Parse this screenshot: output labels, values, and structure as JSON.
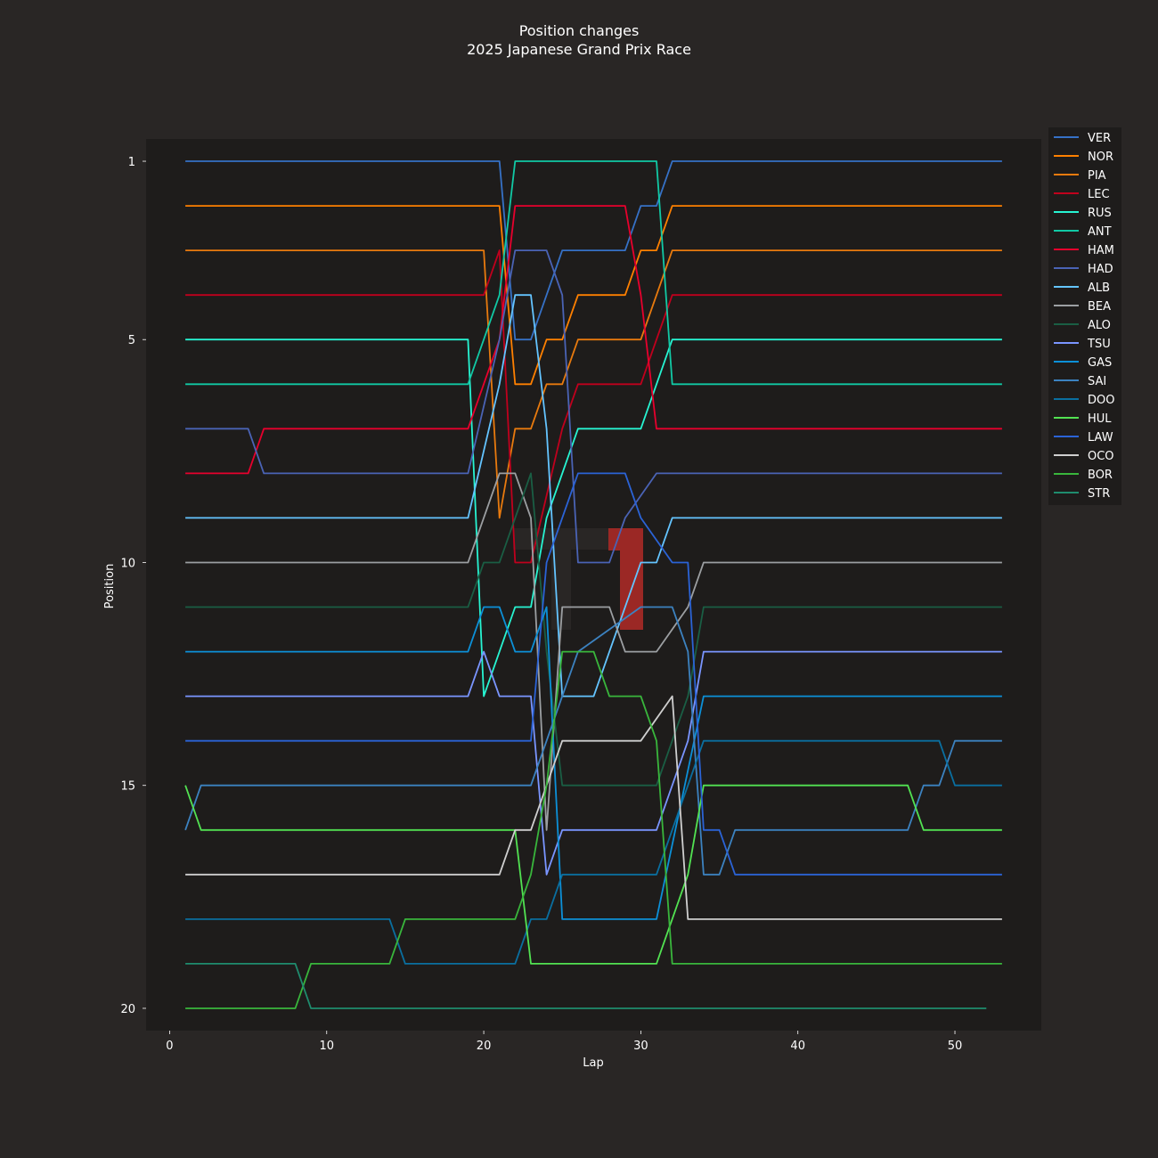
{
  "chart_data": {
    "type": "line",
    "title": "Position changes",
    "subtitle": "2025 Japanese Grand Prix Race",
    "xlabel": "Lap",
    "ylabel": "Position",
    "xlim": [
      -1.5,
      55.5
    ],
    "ylim": [
      20.5,
      0.5
    ],
    "y_inverted": true,
    "xticks": [
      0,
      10,
      20,
      30,
      40,
      50
    ],
    "yticks": [
      1,
      5,
      10,
      15,
      20
    ],
    "grid": false,
    "legend_position": "outside-right-top",
    "background": "#292625",
    "plot_background": "#1e1c1b",
    "series": [
      {
        "name": "VER",
        "color": "#3671C6",
        "points": [
          [
            1,
            1
          ],
          [
            21,
            1
          ],
          [
            22,
            5
          ],
          [
            23,
            5
          ],
          [
            24,
            4
          ],
          [
            25,
            3
          ],
          [
            29,
            3
          ],
          [
            30,
            2
          ],
          [
            31,
            2
          ],
          [
            32,
            1
          ],
          [
            53,
            1
          ]
        ]
      },
      {
        "name": "NOR",
        "color": "#FF8000",
        "points": [
          [
            1,
            2
          ],
          [
            21,
            2
          ],
          [
            22,
            6
          ],
          [
            23,
            6
          ],
          [
            24,
            5
          ],
          [
            25,
            5
          ],
          [
            26,
            4
          ],
          [
            29,
            4
          ],
          [
            30,
            3
          ],
          [
            31,
            3
          ],
          [
            32,
            2
          ],
          [
            53,
            2
          ]
        ]
      },
      {
        "name": "PIA",
        "color": "#E87A0E",
        "points": [
          [
            1,
            3
          ],
          [
            20,
            3
          ],
          [
            21,
            9
          ],
          [
            22,
            7
          ],
          [
            23,
            7
          ],
          [
            24,
            6
          ],
          [
            25,
            6
          ],
          [
            26,
            5
          ],
          [
            30,
            5
          ],
          [
            32,
            3
          ],
          [
            53,
            3
          ]
        ]
      },
      {
        "name": "LEC",
        "color": "#C0001D",
        "points": [
          [
            1,
            4
          ],
          [
            20,
            4
          ],
          [
            21,
            3
          ],
          [
            22,
            10
          ],
          [
            23,
            10
          ],
          [
            25,
            7
          ],
          [
            26,
            6
          ],
          [
            30,
            6
          ],
          [
            31,
            5
          ],
          [
            32,
            4
          ],
          [
            53,
            4
          ]
        ]
      },
      {
        "name": "RUS",
        "color": "#27F4D2",
        "points": [
          [
            1,
            5
          ],
          [
            19,
            5
          ],
          [
            20,
            13
          ],
          [
            22,
            11
          ],
          [
            23,
            11
          ],
          [
            24,
            9
          ],
          [
            26,
            7
          ],
          [
            30,
            7
          ],
          [
            32,
            5
          ],
          [
            53,
            5
          ]
        ]
      },
      {
        "name": "ANT",
        "color": "#11C9A5",
        "points": [
          [
            1,
            6
          ],
          [
            19,
            6
          ],
          [
            21,
            4
          ],
          [
            22,
            1
          ],
          [
            31,
            1
          ],
          [
            32,
            6
          ],
          [
            53,
            6
          ]
        ]
      },
      {
        "name": "HAM",
        "color": "#E8002D",
        "points": [
          [
            1,
            8
          ],
          [
            5,
            8
          ],
          [
            6,
            7
          ],
          [
            19,
            7
          ],
          [
            21,
            5
          ],
          [
            22,
            2
          ],
          [
            29,
            2
          ],
          [
            30,
            4
          ],
          [
            31,
            7
          ],
          [
            53,
            7
          ]
        ]
      },
      {
        "name": "HAD",
        "color": "#4A63B5",
        "points": [
          [
            1,
            7
          ],
          [
            5,
            7
          ],
          [
            6,
            8
          ],
          [
            19,
            8
          ],
          [
            21,
            5
          ],
          [
            22,
            3
          ],
          [
            24,
            3
          ],
          [
            25,
            4
          ],
          [
            26,
            10
          ],
          [
            28,
            10
          ],
          [
            29,
            9
          ],
          [
            31,
            8
          ],
          [
            53,
            8
          ]
        ]
      },
      {
        "name": "ALB",
        "color": "#64C4FF",
        "points": [
          [
            1,
            9
          ],
          [
            19,
            9
          ],
          [
            21,
            6
          ],
          [
            22,
            4
          ],
          [
            23,
            4
          ],
          [
            24,
            7
          ],
          [
            25,
            13
          ],
          [
            27,
            13
          ],
          [
            30,
            10
          ],
          [
            31,
            10
          ],
          [
            32,
            9
          ],
          [
            53,
            9
          ]
        ]
      },
      {
        "name": "BEA",
        "color": "#9C9FA2",
        "points": [
          [
            1,
            10
          ],
          [
            19,
            10
          ],
          [
            21,
            8
          ],
          [
            22,
            8
          ],
          [
            23,
            9
          ],
          [
            24,
            16
          ],
          [
            25,
            11
          ],
          [
            28,
            11
          ],
          [
            29,
            12
          ],
          [
            31,
            12
          ],
          [
            33,
            11
          ],
          [
            34,
            10
          ],
          [
            53,
            10
          ]
        ]
      },
      {
        "name": "ALO",
        "color": "#1A5E44",
        "points": [
          [
            1,
            11
          ],
          [
            19,
            11
          ],
          [
            20,
            10
          ],
          [
            21,
            10
          ],
          [
            23,
            8
          ],
          [
            24,
            12
          ],
          [
            25,
            15
          ],
          [
            31,
            15
          ],
          [
            33,
            13
          ],
          [
            34,
            11
          ],
          [
            53,
            11
          ]
        ]
      },
      {
        "name": "TSU",
        "color": "#7A95FF",
        "points": [
          [
            1,
            13
          ],
          [
            19,
            13
          ],
          [
            20,
            12
          ],
          [
            21,
            13
          ],
          [
            23,
            13
          ],
          [
            24,
            17
          ],
          [
            25,
            16
          ],
          [
            31,
            16
          ],
          [
            33,
            14
          ],
          [
            34,
            12
          ],
          [
            53,
            12
          ]
        ]
      },
      {
        "name": "GAS",
        "color": "#0C90D8",
        "points": [
          [
            1,
            12
          ],
          [
            19,
            12
          ],
          [
            20,
            11
          ],
          [
            21,
            11
          ],
          [
            22,
            12
          ],
          [
            23,
            12
          ],
          [
            24,
            11
          ],
          [
            25,
            18
          ],
          [
            31,
            18
          ],
          [
            34,
            13
          ],
          [
            53,
            13
          ]
        ]
      },
      {
        "name": "SAI",
        "color": "#3C82C0",
        "points": [
          [
            1,
            16
          ],
          [
            2,
            15
          ],
          [
            23,
            15
          ],
          [
            24,
            14
          ],
          [
            25,
            13
          ],
          [
            26,
            12
          ],
          [
            30,
            11
          ],
          [
            32,
            11
          ],
          [
            33,
            12
          ],
          [
            34,
            17
          ],
          [
            35,
            17
          ],
          [
            36,
            16
          ],
          [
            47,
            16
          ],
          [
            48,
            15
          ],
          [
            49,
            15
          ],
          [
            50,
            14
          ],
          [
            53,
            14
          ]
        ]
      },
      {
        "name": "DOO",
        "color": "#0A6FA0",
        "points": [
          [
            1,
            18
          ],
          [
            14,
            18
          ],
          [
            15,
            19
          ],
          [
            22,
            19
          ],
          [
            23,
            18
          ],
          [
            24,
            18
          ],
          [
            25,
            17
          ],
          [
            31,
            17
          ],
          [
            34,
            14
          ],
          [
            49,
            14
          ],
          [
            50,
            15
          ],
          [
            53,
            15
          ]
        ]
      },
      {
        "name": "HUL",
        "color": "#52E252",
        "points": [
          [
            1,
            15
          ],
          [
            2,
            16
          ],
          [
            22,
            16
          ],
          [
            23,
            19
          ],
          [
            31,
            19
          ],
          [
            33,
            17
          ],
          [
            34,
            15
          ],
          [
            47,
            15
          ],
          [
            48,
            16
          ],
          [
            53,
            16
          ]
        ]
      },
      {
        "name": "LAW",
        "color": "#2B63D6",
        "points": [
          [
            1,
            14
          ],
          [
            23,
            14
          ],
          [
            24,
            10
          ],
          [
            25,
            9
          ],
          [
            26,
            8
          ],
          [
            29,
            8
          ],
          [
            30,
            9
          ],
          [
            32,
            10
          ],
          [
            33,
            10
          ],
          [
            34,
            16
          ],
          [
            35,
            16
          ],
          [
            36,
            17
          ],
          [
            53,
            17
          ]
        ]
      },
      {
        "name": "OCO",
        "color": "#CFCFCF",
        "points": [
          [
            1,
            17
          ],
          [
            21,
            17
          ],
          [
            22,
            16
          ],
          [
            23,
            16
          ],
          [
            24,
            15
          ],
          [
            25,
            14
          ],
          [
            30,
            14
          ],
          [
            32,
            13
          ],
          [
            33,
            18
          ],
          [
            53,
            18
          ]
        ]
      },
      {
        "name": "BOR",
        "color": "#39B63C",
        "points": [
          [
            1,
            20
          ],
          [
            8,
            20
          ],
          [
            9,
            19
          ],
          [
            14,
            19
          ],
          [
            15,
            18
          ],
          [
            22,
            18
          ],
          [
            23,
            17
          ],
          [
            24,
            15
          ],
          [
            25,
            12
          ],
          [
            27,
            12
          ],
          [
            28,
            13
          ],
          [
            30,
            13
          ],
          [
            31,
            14
          ],
          [
            32,
            19
          ],
          [
            53,
            19
          ]
        ]
      },
      {
        "name": "STR",
        "color": "#1F8C6E",
        "points": [
          [
            1,
            19
          ],
          [
            8,
            19
          ],
          [
            9,
            20
          ],
          [
            52,
            20
          ]
        ]
      }
    ]
  }
}
